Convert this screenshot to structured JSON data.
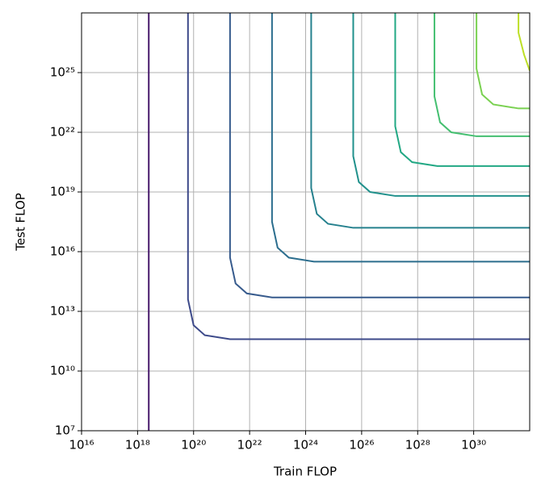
{
  "chart_data": {
    "type": "contour",
    "x_label": "Train FLOP",
    "y_label": "Test FLOP",
    "log_x": true,
    "log_y": true,
    "grid": true,
    "xlim": [
      1e+16,
      1e+32
    ],
    "ylim": [
      10000000.0,
      1e+28
    ],
    "xticks": [
      {
        "value": 1e+16,
        "label": "10¹⁶"
      },
      {
        "value": 1e+18,
        "label": "10¹⁸"
      },
      {
        "value": 1e+20,
        "label": "10²⁰"
      },
      {
        "value": 1e+22,
        "label": "10²²"
      },
      {
        "value": 1e+24,
        "label": "10²⁴"
      },
      {
        "value": 1e+26,
        "label": "10²⁶"
      },
      {
        "value": 1e+28,
        "label": "10²⁸"
      },
      {
        "value": 1e+30,
        "label": "10³⁰"
      }
    ],
    "yticks": [
      {
        "value": 10000000.0,
        "label": "10⁷"
      },
      {
        "value": 10000000000.0,
        "label": "10¹⁰"
      },
      {
        "value": 10000000000000.0,
        "label": "10¹³"
      },
      {
        "value": 1e+16,
        "label": "10¹⁶"
      },
      {
        "value": 1e+19,
        "label": "10¹⁹"
      },
      {
        "value": 1e+22,
        "label": "10²²"
      },
      {
        "value": 1e+25,
        "label": "10²⁵"
      }
    ],
    "series": [
      {
        "color": "#471a6b",
        "x": [
          2.51e+18,
          2.51e+18
        ],
        "y": [
          1e+28,
          10000000.0
        ]
      },
      {
        "color": "#3d4a8a",
        "x": [
          6.31e+19,
          6.31e+19,
          1e+20,
          2.51e+20,
          2e+21,
          1e+32
        ],
        "y": [
          1e+28,
          39800000000000.0,
          2000000000000.0,
          631000000000.0,
          398000000000.0,
          398000000000.0
        ]
      },
      {
        "color": "#375b8d",
        "x": [
          2e+21,
          2e+21,
          3.16e+21,
          7.94e+21,
          6.31e+22,
          1e+32
        ],
        "y": [
          1e+28,
          5010000000000000.0,
          251000000000000.0,
          79400000000000.0,
          50100000000000.0,
          50100000000000.0
        ]
      },
      {
        "color": "#2c6e8e",
        "x": [
          6.31e+22,
          6.31e+22,
          1e+23,
          2.51e+23,
          2e+24,
          1e+32
        ],
        "y": [
          1e+28,
          3.16e+17,
          1.58e+16,
          5010000000000000.0,
          3160000000000000.0,
          3160000000000000.0
        ]
      },
      {
        "color": "#26818e",
        "x": [
          1.58e+24,
          1.58e+24,
          2.51e+24,
          6.31e+24,
          5.01e+25,
          1e+32
        ],
        "y": [
          1e+28,
          1.58e+19,
          7.94e+17,
          2.51e+17,
          1.58e+17,
          1.58e+17
        ]
      },
      {
        "color": "#21918c",
        "x": [
          5.01e+25,
          5.01e+25,
          7.94e+25,
          2e+26,
          1.58e+27,
          1e+32
        ],
        "y": [
          1e+28,
          6.31e+20,
          3.16e+19,
          1e+19,
          6.31e+18,
          6.31e+18
        ]
      },
      {
        "color": "#22a884",
        "x": [
          1.58e+27,
          1.58e+27,
          2.51e+27,
          6.31e+27,
          5.01e+28,
          1e+32
        ],
        "y": [
          1e+28,
          2e+22,
          1e+21,
          3.16e+20,
          2e+20,
          2e+20
        ]
      },
      {
        "color": "#44bf70",
        "x": [
          3.98e+28,
          3.98e+28,
          6.31e+28,
          1.58e+29,
          1.26e+30,
          1e+32
        ],
        "y": [
          1e+28,
          6.31e+23,
          3.16e+22,
          1e+22,
          6.31e+21,
          6.31e+21
        ]
      },
      {
        "color": "#7ad151",
        "x": [
          1.26e+30,
          1.26e+30,
          2e+30,
          5.01e+30,
          3.98e+31,
          1e+32
        ],
        "y": [
          1e+28,
          1.58e+25,
          7.94e+23,
          2.51e+23,
          1.58e+23,
          1.58e+23
        ]
      },
      {
        "color": "#bddf26",
        "x": [
          3.98e+31,
          3.98e+31,
          6.31e+31,
          1e+32
        ],
        "y": [
          1e+28,
          1e+27,
          7.94e+25,
          1.26e+25
        ]
      }
    ]
  }
}
